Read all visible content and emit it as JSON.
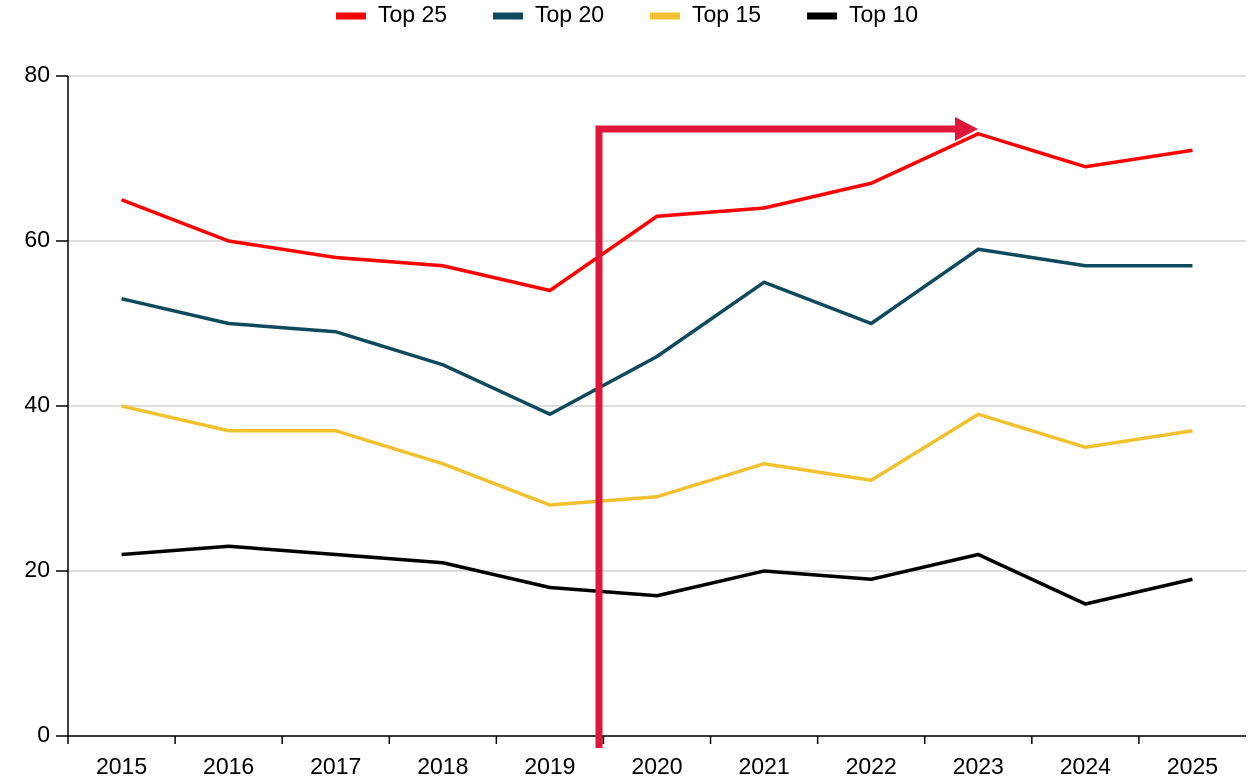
{
  "chart_data": {
    "type": "line",
    "categories": [
      "2015",
      "2016",
      "2017",
      "2018",
      "2019",
      "2020",
      "2021",
      "2022",
      "2023",
      "2024",
      "2025"
    ],
    "series": [
      {
        "name": "Top 25",
        "color": "#ff0000",
        "values": [
          65,
          60,
          58,
          57,
          54,
          63,
          64,
          67,
          73,
          69,
          71
        ]
      },
      {
        "name": "Top 20",
        "color": "#0e4a5c",
        "values": [
          53,
          50,
          49,
          45,
          39,
          46,
          55,
          50,
          59,
          57,
          57
        ]
      },
      {
        "name": "Top 15",
        "color": "#f2c12e",
        "values": [
          40,
          37,
          37,
          33,
          28,
          29,
          33,
          31,
          39,
          35,
          37
        ]
      },
      {
        "name": "Top 10",
        "color": "#000000",
        "values": [
          22,
          23,
          22,
          21,
          18,
          17,
          20,
          19,
          22,
          16,
          19
        ]
      }
    ],
    "ylim": [
      0,
      80
    ],
    "yticks": [
      0,
      20,
      40,
      60,
      80
    ],
    "grid": true,
    "legend": "top"
  }
}
